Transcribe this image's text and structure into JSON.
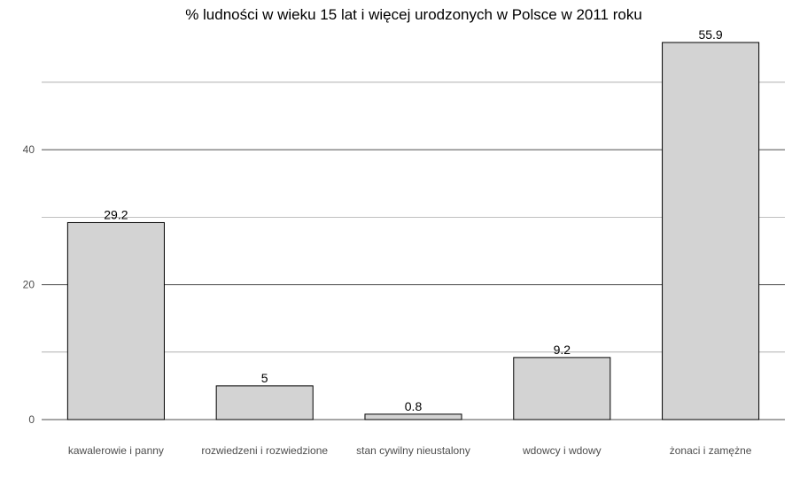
{
  "chart_data": {
    "type": "bar",
    "title": "% ludności w wieku 15 lat i więcej urodzonych w Polsce w 2011 roku",
    "categories": [
      "kawalerowie i panny",
      "rozwiedzeni i rozwiedzione",
      "stan cywilny nieustalony",
      "wdowcy i wdowy",
      "żonaci i zamężne"
    ],
    "values": [
      29.2,
      5,
      0.8,
      9.2,
      55.9
    ],
    "value_labels": [
      "29.2",
      "5",
      "0.8",
      "9.2",
      "55.9"
    ],
    "ylim": [
      0,
      58
    ],
    "yticks": [
      0,
      20,
      40
    ],
    "ytick_labels": [
      "0",
      "20",
      "40"
    ],
    "minor_gridlines": [
      10,
      30,
      50
    ],
    "xlabel": "",
    "ylabel": "",
    "grid": true,
    "bar_fill": "#d3d3d3",
    "bar_stroke": "#000000"
  }
}
